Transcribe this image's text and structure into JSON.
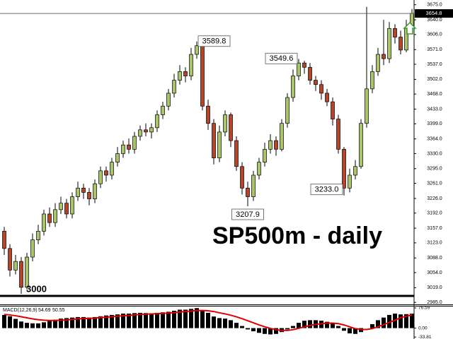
{
  "chart_data": {
    "type": "candlestick",
    "title": "SP500m - daily",
    "up_color": "#a9c46a",
    "down_color": "#b5442b",
    "open": [
      3150,
      3110,
      3060,
      3080,
      3020,
      3090,
      3130,
      3150,
      3190,
      3170,
      3200,
      3215,
      3190,
      3230,
      3250,
      3240,
      3225,
      3260,
      3290,
      3280,
      3310,
      3330,
      3350,
      3340,
      3370,
      3385,
      3380,
      3390,
      3420,
      3440,
      3470,
      3500,
      3520,
      3510,
      3560,
      3580,
      3440,
      3400,
      3320,
      3380,
      3420,
      3360,
      3300,
      3250,
      3230,
      3280,
      3310,
      3340,
      3360,
      3340,
      3400,
      3460,
      3510,
      3540,
      3530,
      3500,
      3490,
      3470,
      3450,
      3410,
      3340,
      3250,
      3280,
      3300,
      3400,
      3480,
      3520,
      3560,
      3550,
      3620,
      3600,
      3570,
      3620
    ],
    "high": [
      3160,
      3120,
      3095,
      3090,
      3100,
      3145,
      3165,
      3200,
      3205,
      3215,
      3230,
      3225,
      3240,
      3265,
      3260,
      3250,
      3270,
      3300,
      3300,
      3320,
      3345,
      3360,
      3365,
      3380,
      3395,
      3400,
      3400,
      3430,
      3450,
      3480,
      3515,
      3535,
      3530,
      3575,
      3589.8,
      3585,
      3455,
      3410,
      3395,
      3430,
      3425,
      3370,
      3310,
      3265,
      3290,
      3320,
      3355,
      3375,
      3370,
      3410,
      3470,
      3525,
      3549.6,
      3545,
      3540,
      3510,
      3500,
      3480,
      3460,
      3420,
      3345,
      3295,
      3315,
      3410,
      3670,
      3535,
      3575,
      3640,
      3635,
      3630,
      3615,
      3640,
      3665
    ],
    "low": [
      3095,
      3045,
      3050,
      3005,
      3015,
      3080,
      3120,
      3140,
      3160,
      3160,
      3190,
      3180,
      3180,
      3220,
      3225,
      3210,
      3215,
      3250,
      3265,
      3270,
      3300,
      3320,
      3330,
      3330,
      3360,
      3370,
      3365,
      3380,
      3410,
      3430,
      3460,
      3490,
      3495,
      3500,
      3550,
      3430,
      3385,
      3305,
      3310,
      3370,
      3345,
      3290,
      3235,
      3207.9,
      3220,
      3270,
      3300,
      3330,
      3325,
      3335,
      3390,
      3450,
      3500,
      3515,
      3490,
      3475,
      3455,
      3440,
      3395,
      3330,
      3233,
      3240,
      3270,
      3295,
      3390,
      3470,
      3510,
      3535,
      3540,
      3585,
      3560,
      3565,
      3610
    ],
    "close": [
      3110,
      3060,
      3080,
      3020,
      3090,
      3130,
      3150,
      3190,
      3170,
      3200,
      3215,
      3190,
      3230,
      3250,
      3240,
      3225,
      3260,
      3290,
      3280,
      3310,
      3330,
      3350,
      3340,
      3370,
      3385,
      3380,
      3390,
      3420,
      3440,
      3470,
      3500,
      3520,
      3510,
      3560,
      3580,
      3440,
      3400,
      3320,
      3380,
      3420,
      3360,
      3300,
      3250,
      3230,
      3280,
      3310,
      3340,
      3360,
      3340,
      3400,
      3460,
      3510,
      3540,
      3530,
      3500,
      3490,
      3470,
      3450,
      3410,
      3340,
      3250,
      3280,
      3300,
      3400,
      3480,
      3520,
      3560,
      3550,
      3620,
      3600,
      3570,
      3620,
      3655
    ],
    "ylim": [
      2982,
      3686
    ],
    "yticks": [
      {
        "value": 3675,
        "label": "3675.0"
      },
      {
        "value": 3640,
        "label": "3640.0"
      },
      {
        "value": 3606,
        "label": "3606.0"
      },
      {
        "value": 3571,
        "label": "3571.0"
      },
      {
        "value": 3537,
        "label": "3537.0"
      },
      {
        "value": 3502,
        "label": "3502.0"
      },
      {
        "value": 3468,
        "label": "3468.0"
      },
      {
        "value": 3433,
        "label": "3433.0"
      },
      {
        "value": 3399,
        "label": "3399.0"
      },
      {
        "value": 3364,
        "label": "3364.0"
      },
      {
        "value": 3330,
        "label": "3330.0"
      },
      {
        "value": 3295,
        "label": "3295.0"
      },
      {
        "value": 3261,
        "label": "3261.0"
      },
      {
        "value": 3226,
        "label": "3226.0"
      },
      {
        "value": 3192,
        "label": "3192.0"
      },
      {
        "value": 3157,
        "label": "3157.0"
      },
      {
        "value": 3123,
        "label": "3123.0"
      },
      {
        "value": 3088,
        "label": "3088.0"
      },
      {
        "value": 3054,
        "label": "3054.0"
      },
      {
        "value": 3019,
        "label": "3019.0"
      },
      {
        "value": 2985,
        "label": "2985.0"
      }
    ],
    "price_line": 3654.8,
    "level": 3000,
    "annotations": [
      {
        "value": 3589.8,
        "label": "3589.8"
      },
      {
        "value": 3549.6,
        "label": "3549.6"
      },
      {
        "value": 3207.9,
        "label": "3207.9"
      },
      {
        "value": 3233,
        "label": "3233.0"
      }
    ],
    "macd": {
      "title": "MACD(12,26,9)",
      "signal_color": "#e00000",
      "histogram": [
        50,
        45,
        35,
        25,
        20,
        18,
        18,
        22,
        28,
        32,
        36,
        38,
        40,
        42,
        42,
        40,
        42,
        45,
        48,
        50,
        52,
        55,
        55,
        57,
        58,
        57,
        56,
        58,
        60,
        62,
        66,
        70,
        70,
        73,
        76,
        68,
        58,
        44,
        38,
        36,
        30,
        20,
        8,
        -5,
        -12,
        -18,
        -22,
        -24,
        -22,
        -15,
        -5,
        8,
        20,
        28,
        30,
        30,
        28,
        24,
        18,
        8,
        -10,
        -20,
        -22,
        -15,
        0,
        15,
        30,
        40,
        50,
        55,
        52,
        53,
        54.69
      ],
      "signal": [
        52,
        50,
        47,
        43,
        39,
        35,
        32,
        30,
        29,
        29,
        30,
        31,
        33,
        35,
        36,
        37,
        38,
        40,
        41,
        43,
        45,
        47,
        48,
        50,
        52,
        53,
        54,
        55,
        56,
        57,
        59,
        61,
        63,
        65,
        67,
        67,
        66,
        63,
        58,
        54,
        49,
        43,
        36,
        28,
        20,
        12,
        5,
        -1,
        -6,
        -9,
        -9,
        -6,
        -1,
        5,
        10,
        14,
        17,
        19,
        19,
        17,
        12,
        5,
        -2,
        -5,
        -5,
        -2,
        5,
        13,
        22,
        30,
        40,
        45,
        50.55
      ],
      "ylim": [
        -36,
        82
      ],
      "yticks": [
        76.59,
        {
          "value": 0,
          "label": "0.00"
        },
        -33.81
      ]
    }
  }
}
